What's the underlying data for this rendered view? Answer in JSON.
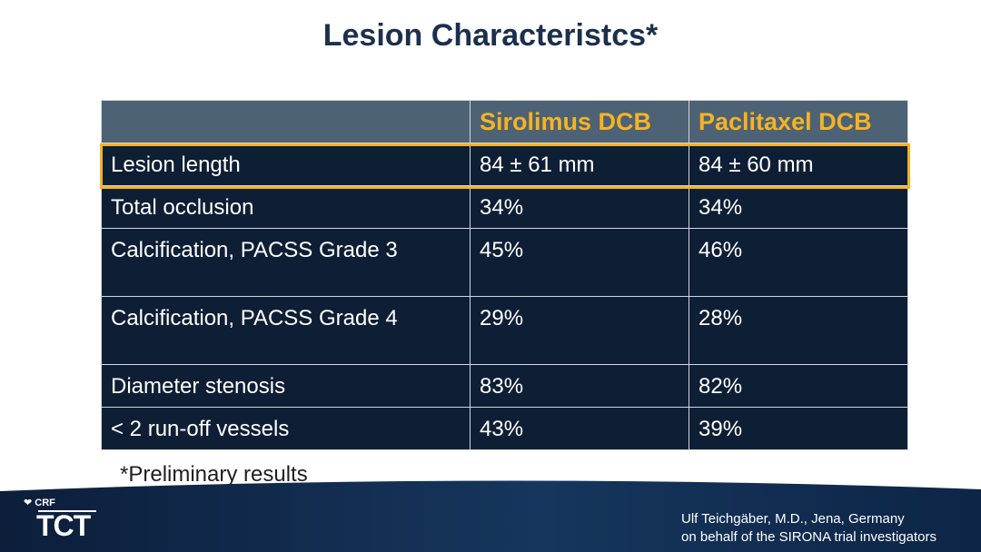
{
  "slide": {
    "title": "Lesion Characteristcs*",
    "footnote": "*Preliminary results"
  },
  "table": {
    "headers": [
      "",
      "Sirolimus DCB",
      "Paclitaxel DCB"
    ],
    "rows": [
      [
        "Lesion length",
        "84 ± 61 mm",
        "84 ± 60 mm"
      ],
      [
        "Total occlusion",
        "34%",
        "34%"
      ],
      [
        "Calcification, PACSS Grade 3",
        "45%",
        "46%"
      ],
      [
        "Calcification, PACSS Grade 4",
        "29%",
        "28%"
      ],
      [
        "Diameter stenosis",
        "83%",
        "82%"
      ],
      [
        "< 2 run-off vessels",
        "43%",
        "39%"
      ]
    ]
  },
  "footer": {
    "logo_small": "CRF",
    "logo_main": "TCT",
    "credit_line1": "Ulf Teichgäber, M.D., Jena, Germany",
    "credit_line2": "on behalf of the SIRONA trial investigators"
  },
  "colors": {
    "title": "#1b2f4e",
    "header_bg": "#4d6274",
    "header_text": "#f5b324",
    "cell_bg": "#0e1e35",
    "highlight": "#f5b324"
  }
}
